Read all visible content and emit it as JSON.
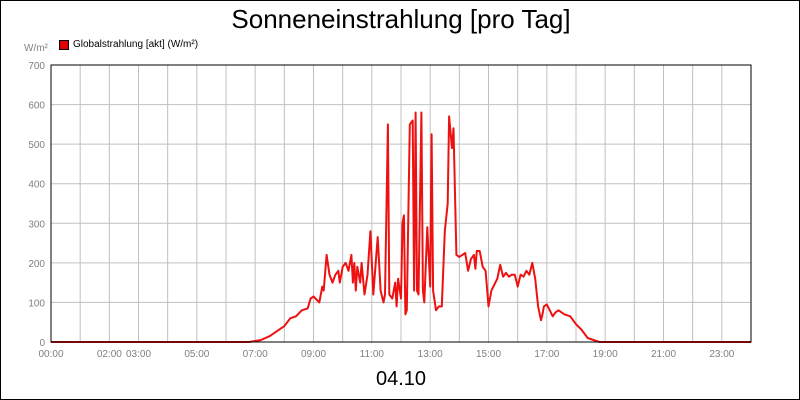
{
  "chart_data": {
    "type": "line",
    "title": "Sonneneinstrahlung [pro Tag]",
    "ylabel": "W/m²",
    "date_label": "04.10",
    "ylim": [
      0,
      700
    ],
    "xlim_hours": [
      0,
      24
    ],
    "grid": true,
    "legend_placement": "top-left",
    "y_ticks": [
      "0",
      "100",
      "200",
      "300",
      "400",
      "500",
      "600",
      "700"
    ],
    "x_ticks": [
      {
        "hour": 0,
        "label": "00:00"
      },
      {
        "hour": 2,
        "label": "02:00"
      },
      {
        "hour": 3,
        "label": "03:00"
      },
      {
        "hour": 5,
        "label": "05:00"
      },
      {
        "hour": 7,
        "label": "07:00"
      },
      {
        "hour": 9,
        "label": "09:00"
      },
      {
        "hour": 11,
        "label": "11:00"
      },
      {
        "hour": 13,
        "label": "13:00"
      },
      {
        "hour": 15,
        "label": "15:00"
      },
      {
        "hour": 17,
        "label": "17:00"
      },
      {
        "hour": 19,
        "label": "19:00"
      },
      {
        "hour": 21,
        "label": "21:00"
      },
      {
        "hour": 23,
        "label": "23:00"
      }
    ],
    "series": [
      {
        "name": "Globalstrahlung [akt] (W/m²)",
        "color": "#ee1111",
        "points": [
          [
            0,
            0
          ],
          [
            6.8,
            0
          ],
          [
            7.2,
            5
          ],
          [
            7.5,
            15
          ],
          [
            7.8,
            30
          ],
          [
            8.0,
            40
          ],
          [
            8.2,
            60
          ],
          [
            8.4,
            65
          ],
          [
            8.6,
            80
          ],
          [
            8.8,
            85
          ],
          [
            8.9,
            110
          ],
          [
            9.0,
            115
          ],
          [
            9.2,
            100
          ],
          [
            9.3,
            140
          ],
          [
            9.35,
            130
          ],
          [
            9.45,
            220
          ],
          [
            9.55,
            170
          ],
          [
            9.65,
            150
          ],
          [
            9.75,
            170
          ],
          [
            9.85,
            180
          ],
          [
            9.9,
            150
          ],
          [
            10.0,
            190
          ],
          [
            10.1,
            200
          ],
          [
            10.2,
            180
          ],
          [
            10.3,
            220
          ],
          [
            10.35,
            150
          ],
          [
            10.4,
            200
          ],
          [
            10.45,
            130
          ],
          [
            10.5,
            190
          ],
          [
            10.6,
            150
          ],
          [
            10.65,
            200
          ],
          [
            10.75,
            120
          ],
          [
            10.85,
            170
          ],
          [
            10.95,
            280
          ],
          [
            11.05,
            120
          ],
          [
            11.2,
            265
          ],
          [
            11.3,
            130
          ],
          [
            11.4,
            100
          ],
          [
            11.45,
            120
          ],
          [
            11.55,
            550
          ],
          [
            11.6,
            120
          ],
          [
            11.7,
            110
          ],
          [
            11.8,
            150
          ],
          [
            11.85,
            90
          ],
          [
            11.9,
            160
          ],
          [
            12.0,
            110
          ],
          [
            12.05,
            300
          ],
          [
            12.1,
            320
          ],
          [
            12.15,
            70
          ],
          [
            12.2,
            80
          ],
          [
            12.3,
            550
          ],
          [
            12.4,
            560
          ],
          [
            12.45,
            130
          ],
          [
            12.5,
            580
          ],
          [
            12.55,
            130
          ],
          [
            12.6,
            120
          ],
          [
            12.7,
            580
          ],
          [
            12.75,
            130
          ],
          [
            12.8,
            100
          ],
          [
            12.9,
            290
          ],
          [
            13.0,
            140
          ],
          [
            13.05,
            525
          ],
          [
            13.1,
            130
          ],
          [
            13.2,
            80
          ],
          [
            13.3,
            90
          ],
          [
            13.4,
            90
          ],
          [
            13.5,
            280
          ],
          [
            13.6,
            350
          ],
          [
            13.65,
            570
          ],
          [
            13.75,
            490
          ],
          [
            13.8,
            540
          ],
          [
            13.9,
            220
          ],
          [
            14.0,
            215
          ],
          [
            14.1,
            220
          ],
          [
            14.2,
            225
          ],
          [
            14.3,
            180
          ],
          [
            14.4,
            210
          ],
          [
            14.5,
            220
          ],
          [
            14.55,
            185
          ],
          [
            14.6,
            230
          ],
          [
            14.7,
            230
          ],
          [
            14.8,
            190
          ],
          [
            14.9,
            180
          ],
          [
            15.0,
            90
          ],
          [
            15.1,
            130
          ],
          [
            15.3,
            160
          ],
          [
            15.4,
            195
          ],
          [
            15.5,
            165
          ],
          [
            15.6,
            175
          ],
          [
            15.7,
            165
          ],
          [
            15.8,
            170
          ],
          [
            15.9,
            170
          ],
          [
            16.0,
            140
          ],
          [
            16.1,
            170
          ],
          [
            16.2,
            165
          ],
          [
            16.3,
            180
          ],
          [
            16.4,
            170
          ],
          [
            16.5,
            200
          ],
          [
            16.6,
            160
          ],
          [
            16.7,
            90
          ],
          [
            16.8,
            55
          ],
          [
            16.85,
            70
          ],
          [
            16.9,
            90
          ],
          [
            17.0,
            95
          ],
          [
            17.1,
            80
          ],
          [
            17.2,
            65
          ],
          [
            17.3,
            75
          ],
          [
            17.4,
            80
          ],
          [
            17.6,
            70
          ],
          [
            17.8,
            65
          ],
          [
            18.0,
            45
          ],
          [
            18.2,
            30
          ],
          [
            18.4,
            10
          ],
          [
            18.6,
            5
          ],
          [
            18.8,
            0
          ],
          [
            24.0,
            0
          ]
        ]
      }
    ]
  }
}
